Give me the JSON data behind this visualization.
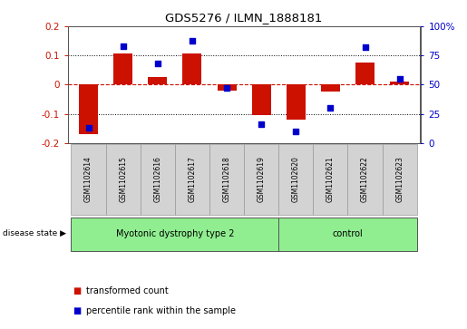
{
  "title": "GDS5276 / ILMN_1888181",
  "samples": [
    "GSM1102614",
    "GSM1102615",
    "GSM1102616",
    "GSM1102617",
    "GSM1102618",
    "GSM1102619",
    "GSM1102620",
    "GSM1102621",
    "GSM1102622",
    "GSM1102623"
  ],
  "transformed_count": [
    -0.17,
    0.107,
    0.025,
    0.107,
    -0.02,
    -0.105,
    -0.12,
    -0.022,
    0.075,
    0.01
  ],
  "percentile_rank": [
    13,
    83,
    68,
    88,
    47,
    16,
    10,
    30,
    82,
    55
  ],
  "bar_color": "#cc1100",
  "dot_color": "#0000cc",
  "ylim_left": [
    -0.2,
    0.2
  ],
  "ylim_right": [
    0,
    100
  ],
  "yticks_left": [
    -0.2,
    -0.1,
    0.0,
    0.1,
    0.2
  ],
  "yticks_right": [
    0,
    25,
    50,
    75,
    100
  ],
  "ytick_labels_right": [
    "0",
    "25",
    "50",
    "75",
    "100%"
  ],
  "group1_label": "Myotonic dystrophy type 2",
  "group2_label": "control",
  "group_color": "#90ee90",
  "disease_state_label": "disease state",
  "legend_bar_label": "transformed count",
  "legend_dot_label": "percentile rank within the sample",
  "hline_color": "#cc1100",
  "dotted_line_color": "#000000",
  "sample_box_color": "#d3d3d3",
  "sample_box_edge": "#999999"
}
